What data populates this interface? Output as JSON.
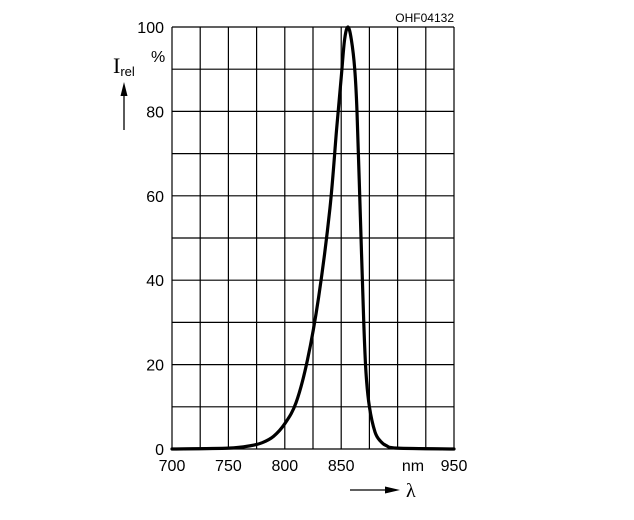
{
  "chart_data": {
    "type": "line",
    "code": "OHF04132",
    "ylabel_main": "I",
    "ylabel_sub": "rel",
    "yunit": "%",
    "xlabel": "λ",
    "xunit": "nm",
    "xlim": [
      700,
      950
    ],
    "ylim": [
      0,
      100
    ],
    "grid": true,
    "x_grid_step": 25,
    "y_grid_step": 10,
    "xticks": [
      {
        "value": 700,
        "label": "700"
      },
      {
        "value": 750,
        "label": "750"
      },
      {
        "value": 800,
        "label": "800"
      },
      {
        "value": 850,
        "label": "850"
      },
      {
        "value": 950,
        "label": "950"
      }
    ],
    "yticks": [
      {
        "value": 0,
        "label": "0"
      },
      {
        "value": 20,
        "label": "20"
      },
      {
        "value": 40,
        "label": "40"
      },
      {
        "value": 60,
        "label": "60"
      },
      {
        "value": 80,
        "label": "80"
      },
      {
        "value": 100,
        "label": "100"
      }
    ],
    "series": [
      {
        "color": "#000000",
        "x": [
          700,
          750,
          770,
          780,
          790,
          800,
          810,
          820,
          830,
          840,
          846,
          850,
          853,
          856,
          859,
          862,
          864,
          867,
          870,
          872,
          875,
          880,
          885,
          890,
          900,
          950
        ],
        "y": [
          0,
          0.2,
          0.8,
          1.5,
          3,
          6,
          11,
          21,
          36,
          57,
          76,
          88,
          97,
          100,
          97,
          90,
          80,
          55,
          30,
          18,
          10,
          4,
          1.8,
          0.8,
          0.2,
          0
        ]
      }
    ]
  }
}
